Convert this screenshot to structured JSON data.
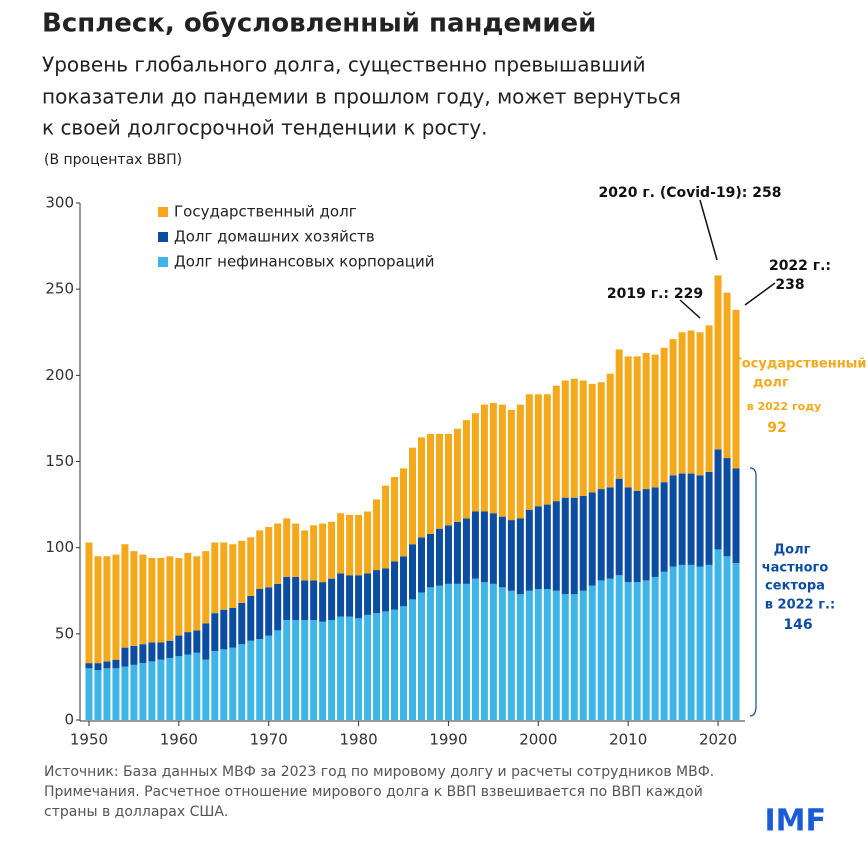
{
  "title": "Всплеск, обусловленный пандемией",
  "subtitle_lines": [
    "Уровень глобального долга, существенно превышавший",
    "показатели до пандемии в прошлом году, может вернуться",
    "к своей долгосрочной тенденции к росту."
  ],
  "footer_lines": [
    "Источник: База данных МВФ за 2023 год по мировому долгу и расчеты сотрудников МВФ.",
    "Примечания. Расчетное отношение мирового долга к ВВП взвешивается по ВВП каждой",
    "страны в долларах США."
  ],
  "logo": "IMF",
  "chart_data": {
    "type": "bar",
    "stacked": true,
    "y_label": "(В процентах ВВП)",
    "x": [
      1950,
      1951,
      1952,
      1953,
      1954,
      1955,
      1956,
      1957,
      1958,
      1959,
      1960,
      1961,
      1962,
      1963,
      1964,
      1965,
      1966,
      1967,
      1968,
      1969,
      1970,
      1971,
      1972,
      1973,
      1974,
      1975,
      1976,
      1977,
      1978,
      1979,
      1980,
      1981,
      1982,
      1983,
      1984,
      1985,
      1986,
      1987,
      1988,
      1989,
      1990,
      1991,
      1992,
      1993,
      1994,
      1995,
      1996,
      1997,
      1998,
      1999,
      2000,
      2001,
      2002,
      2003,
      2004,
      2005,
      2006,
      2007,
      2008,
      2009,
      2010,
      2011,
      2012,
      2013,
      2014,
      2015,
      2016,
      2017,
      2018,
      2019,
      2020,
      2021,
      2022
    ],
    "xlim": [
      1949,
      2023
    ],
    "xticks": [
      1950,
      1960,
      1970,
      1980,
      1990,
      2000,
      2010,
      2020
    ],
    "ylim": [
      0,
      300
    ],
    "yticks": [
      0,
      50,
      100,
      150,
      200,
      250,
      300
    ],
    "series": [
      {
        "name": "Государственный долг",
        "color": "#f4a91c",
        "values": [
          70,
          62,
          61,
          61,
          60,
          55,
          52,
          49,
          49,
          49,
          45,
          46,
          43,
          42,
          41,
          39,
          37,
          36,
          34,
          34,
          35,
          35,
          34,
          31,
          29,
          32,
          34,
          33,
          35,
          35,
          35,
          36,
          41,
          48,
          49,
          51,
          56,
          58,
          58,
          55,
          53,
          54,
          57,
          57,
          62,
          64,
          65,
          64,
          66,
          67,
          65,
          64,
          67,
          68,
          69,
          67,
          63,
          62,
          66,
          75,
          76,
          78,
          79,
          77,
          78,
          79,
          82,
          83,
          83,
          85,
          101,
          96,
          92
        ]
      },
      {
        "name": "Долг домашних хозяйств",
        "color": "#0c4da2",
        "values": [
          3,
          4,
          4,
          5,
          11,
          11,
          11,
          11,
          10,
          10,
          12,
          13,
          13,
          21,
          22,
          23,
          23,
          24,
          26,
          29,
          28,
          27,
          25,
          25,
          23,
          23,
          23,
          24,
          25,
          24,
          25,
          24,
          25,
          25,
          28,
          29,
          32,
          32,
          31,
          33,
          34,
          36,
          38,
          39,
          41,
          41,
          41,
          41,
          44,
          47,
          48,
          49,
          52,
          56,
          56,
          55,
          54,
          53,
          53,
          56,
          55,
          53,
          53,
          52,
          52,
          53,
          53,
          53,
          53,
          54,
          58,
          57,
          55
        ]
      },
      {
        "name": "Долг нефинансовых корпораций",
        "color": "#3db5e6",
        "values": [
          30,
          29,
          30,
          30,
          31,
          32,
          33,
          34,
          35,
          36,
          37,
          38,
          39,
          35,
          40,
          41,
          42,
          44,
          46,
          47,
          49,
          52,
          58,
          58,
          58,
          58,
          57,
          58,
          60,
          60,
          59,
          61,
          62,
          63,
          64,
          66,
          70,
          74,
          77,
          78,
          79,
          79,
          79,
          82,
          80,
          79,
          77,
          75,
          73,
          75,
          76,
          76,
          75,
          73,
          73,
          75,
          78,
          81,
          82,
          84,
          80,
          80,
          81,
          83,
          86,
          89,
          90,
          90,
          89,
          90,
          99,
          95,
          91
        ]
      }
    ],
    "annotations": [
      "2020 г. (Covid-19): 258",
      "2019 г.: 229",
      "2022 г.:",
      "238",
      "Государственный",
      "долг",
      "в 2022 году",
      "92",
      "Долг",
      "частного",
      "сектора",
      "в 2022 г.:",
      "146"
    ]
  }
}
